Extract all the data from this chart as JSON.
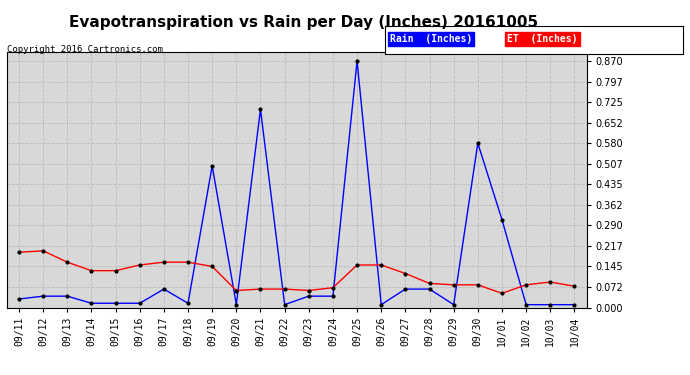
{
  "title": "Evapotranspiration vs Rain per Day (Inches) 20161005",
  "copyright": "Copyright 2016 Cartronics.com",
  "legend_rain": "Rain  (Inches)",
  "legend_et": "ET  (Inches)",
  "x_labels": [
    "09/11",
    "09/12",
    "09/13",
    "09/14",
    "09/15",
    "09/16",
    "09/17",
    "09/18",
    "09/19",
    "09/20",
    "09/21",
    "09/22",
    "09/23",
    "09/24",
    "09/25",
    "09/26",
    "09/27",
    "09/28",
    "09/29",
    "09/30",
    "10/01",
    "10/02",
    "10/03",
    "10/04"
  ],
  "rain_values": [
    0.03,
    0.04,
    0.04,
    0.015,
    0.015,
    0.015,
    0.065,
    0.015,
    0.5,
    0.01,
    0.7,
    0.01,
    0.04,
    0.04,
    0.87,
    0.01,
    0.065,
    0.065,
    0.01,
    0.58,
    0.31,
    0.01,
    0.01,
    0.01
  ],
  "et_values": [
    0.195,
    0.2,
    0.16,
    0.13,
    0.13,
    0.15,
    0.16,
    0.16,
    0.145,
    0.06,
    0.065,
    0.065,
    0.06,
    0.07,
    0.15,
    0.15,
    0.12,
    0.085,
    0.08,
    0.08,
    0.05,
    0.08,
    0.09,
    0.075
  ],
  "rain_color": "#0000ff",
  "et_color": "#ff0000",
  "background_color": "#ffffff",
  "plot_background": "#d8d8d8",
  "grid_color": "#bbbbbb",
  "y_ticks": [
    0.0,
    0.072,
    0.145,
    0.217,
    0.29,
    0.362,
    0.435,
    0.507,
    0.58,
    0.652,
    0.725,
    0.797,
    0.87
  ],
  "ylim": [
    0.0,
    0.9
  ],
  "title_fontsize": 11,
  "tick_fontsize": 7,
  "legend_fontsize": 7,
  "copyright_fontsize": 6.5
}
